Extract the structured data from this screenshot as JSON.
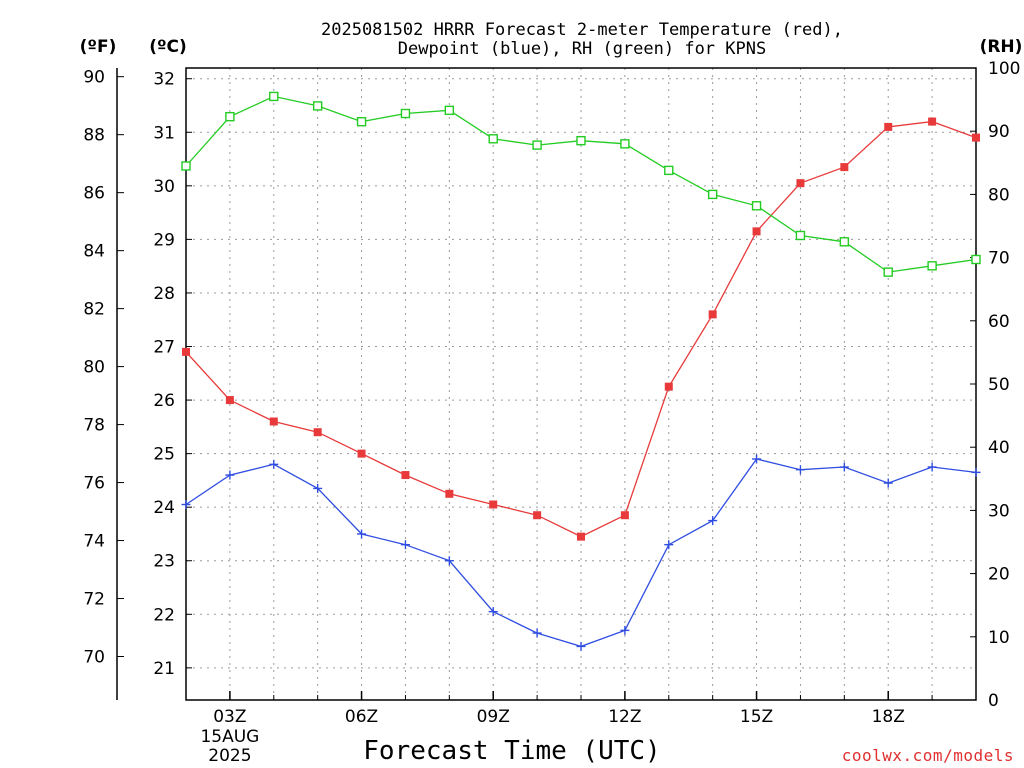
{
  "chart_data": {
    "type": "line",
    "title": [
      "2025081502 HRRR Forecast 2-meter Temperature (red),",
      "Dewpoint (blue), RH (green) for KPNS"
    ],
    "xlabel": "Forecast Time (UTC)",
    "credit": "coolwx.com/models",
    "x_ticks": [
      {
        "label": "03Z",
        "sub": [
          "15AUG",
          "2025"
        ],
        "x": 3
      },
      {
        "label": "06Z",
        "x": 6
      },
      {
        "label": "09Z",
        "x": 9
      },
      {
        "label": "12Z",
        "x": 12
      },
      {
        "label": "15Z",
        "x": 15
      },
      {
        "label": "18Z",
        "x": 18
      }
    ],
    "x_hours": [
      2,
      3,
      4,
      5,
      6,
      7,
      8,
      9,
      10,
      11,
      12,
      13,
      14,
      15,
      16,
      17,
      18,
      19,
      20
    ],
    "xlim": [
      2,
      20
    ],
    "axes": {
      "fahrenheit": {
        "unit": "(ºF)",
        "ticks": [
          70,
          72,
          74,
          76,
          78,
          80,
          82,
          84,
          86,
          88,
          90
        ],
        "ylim": [
          68.5,
          90.3
        ]
      },
      "celsius": {
        "unit": "(ºC)",
        "ticks": [
          21,
          22,
          23,
          24,
          25,
          26,
          27,
          28,
          29,
          30,
          31,
          32
        ],
        "ylim": [
          20.4,
          32.2
        ]
      },
      "rh": {
        "unit": "(RH)",
        "ticks": [
          0,
          10,
          20,
          30,
          40,
          50,
          60,
          70,
          80,
          90,
          100
        ],
        "ylim": [
          0,
          100
        ]
      }
    },
    "grid": true,
    "series": [
      {
        "key": "temperature",
        "axis": "celsius",
        "color": "#e83a3a",
        "marker": "filled-square",
        "values": [
          26.9,
          26.0,
          25.6,
          25.4,
          25.0,
          24.6,
          24.25,
          24.05,
          23.85,
          23.45,
          23.85,
          26.25,
          27.6,
          29.15,
          30.05,
          30.35,
          31.1,
          31.2,
          30.9
        ]
      },
      {
        "key": "dewpoint",
        "axis": "celsius",
        "color": "#2f4de0",
        "marker": "plus",
        "values": [
          24.05,
          24.6,
          24.8,
          24.35,
          23.5,
          23.3,
          23.0,
          22.05,
          21.65,
          21.4,
          21.7,
          23.3,
          23.75,
          24.9,
          24.7,
          24.75,
          24.45,
          24.75,
          24.65
        ]
      },
      {
        "key": "rh",
        "axis": "rh",
        "color": "#22cc22",
        "marker": "open-square",
        "values": [
          84.5,
          92.3,
          95.5,
          94.0,
          91.5,
          92.8,
          93.3,
          88.8,
          87.8,
          88.5,
          88.0,
          83.8,
          80.0,
          78.2,
          73.5,
          72.5,
          67.7,
          68.7,
          69.7
        ]
      }
    ]
  }
}
